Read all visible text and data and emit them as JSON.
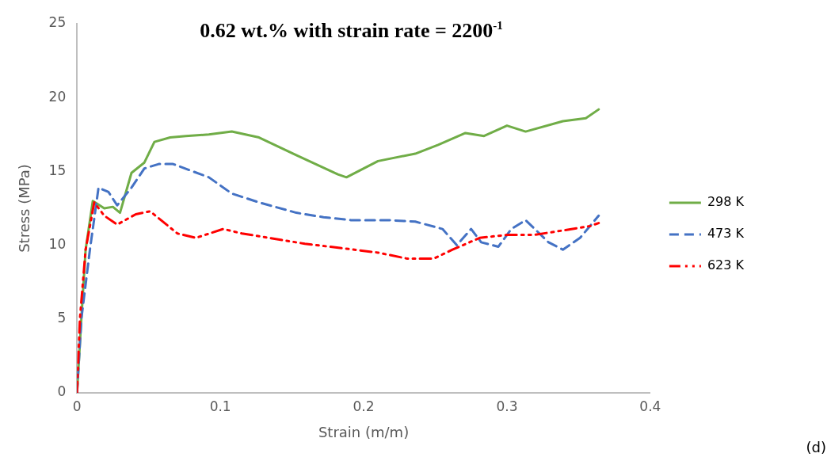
{
  "chart_data": {
    "type": "line",
    "title": "0.62 wt.% with strain rate = 2200$^{-1}$",
    "xlabel": "Strain (m/m)",
    "ylabel": "Stress (MPa)",
    "xlim": [
      0,
      0.4
    ],
    "xticks": [
      0,
      0.1,
      0.2,
      0.3,
      0.4
    ],
    "ylim": [
      0,
      25
    ],
    "yticks": [
      0,
      5,
      10,
      15,
      20,
      25
    ],
    "grid": false,
    "legend": "right",
    "marker": "none",
    "annotations": [
      "(d)"
    ],
    "series": [
      {
        "name": "298 K",
        "color": "#70ad47",
        "line_style": "solid",
        "x": [
          0,
          0.003,
          0.006,
          0.011,
          0.019,
          0.025,
          0.03,
          0.038,
          0.047,
          0.054,
          0.065,
          0.076,
          0.092,
          0.108,
          0.127,
          0.153,
          0.182,
          0.188,
          0.21,
          0.236,
          0.252,
          0.271,
          0.284,
          0.3,
          0.313,
          0.339,
          0.355,
          0.364
        ],
        "values": [
          0,
          5,
          9.7,
          13.0,
          12.5,
          12.6,
          12.2,
          14.9,
          15.6,
          17.0,
          17.3,
          17.4,
          17.5,
          17.7,
          17.3,
          16.1,
          14.8,
          14.6,
          15.7,
          16.2,
          16.8,
          17.6,
          17.4,
          18.1,
          17.7,
          18.4,
          18.6,
          19.2
        ]
      },
      {
        "name": "473 K",
        "color": "#4472c4",
        "line_style": "dashed",
        "x": [
          0,
          0.003,
          0.009,
          0.015,
          0.022,
          0.028,
          0.038,
          0.047,
          0.057,
          0.067,
          0.092,
          0.108,
          0.127,
          0.153,
          0.172,
          0.191,
          0.217,
          0.236,
          0.255,
          0.265,
          0.275,
          0.282,
          0.294,
          0.303,
          0.313,
          0.329,
          0.339,
          0.351,
          0.364
        ],
        "values": [
          0,
          5,
          9.7,
          13.9,
          13.6,
          12.7,
          13.9,
          15.2,
          15.5,
          15.5,
          14.6,
          13.5,
          12.9,
          12.2,
          11.9,
          11.7,
          11.7,
          11.6,
          11.1,
          10.0,
          11.1,
          10.2,
          9.9,
          11.1,
          11.7,
          10.2,
          9.7,
          10.5,
          12.0
        ]
      },
      {
        "name": "623 K",
        "color": "#ff0000",
        "line_style": "dashdot",
        "x": [
          0,
          0.002,
          0.006,
          0.012,
          0.019,
          0.028,
          0.041,
          0.051,
          0.07,
          0.083,
          0.102,
          0.115,
          0.134,
          0.159,
          0.185,
          0.21,
          0.23,
          0.249,
          0.262,
          0.281,
          0.3,
          0.319,
          0.339,
          0.358,
          0.364
        ],
        "values": [
          0,
          5,
          9.7,
          12.9,
          12.0,
          11.4,
          12.1,
          12.3,
          10.8,
          10.5,
          11.1,
          10.8,
          10.5,
          10.1,
          9.8,
          9.5,
          9.1,
          9.1,
          9.7,
          10.5,
          10.7,
          10.7,
          11.0,
          11.3,
          11.5
        ]
      }
    ]
  }
}
